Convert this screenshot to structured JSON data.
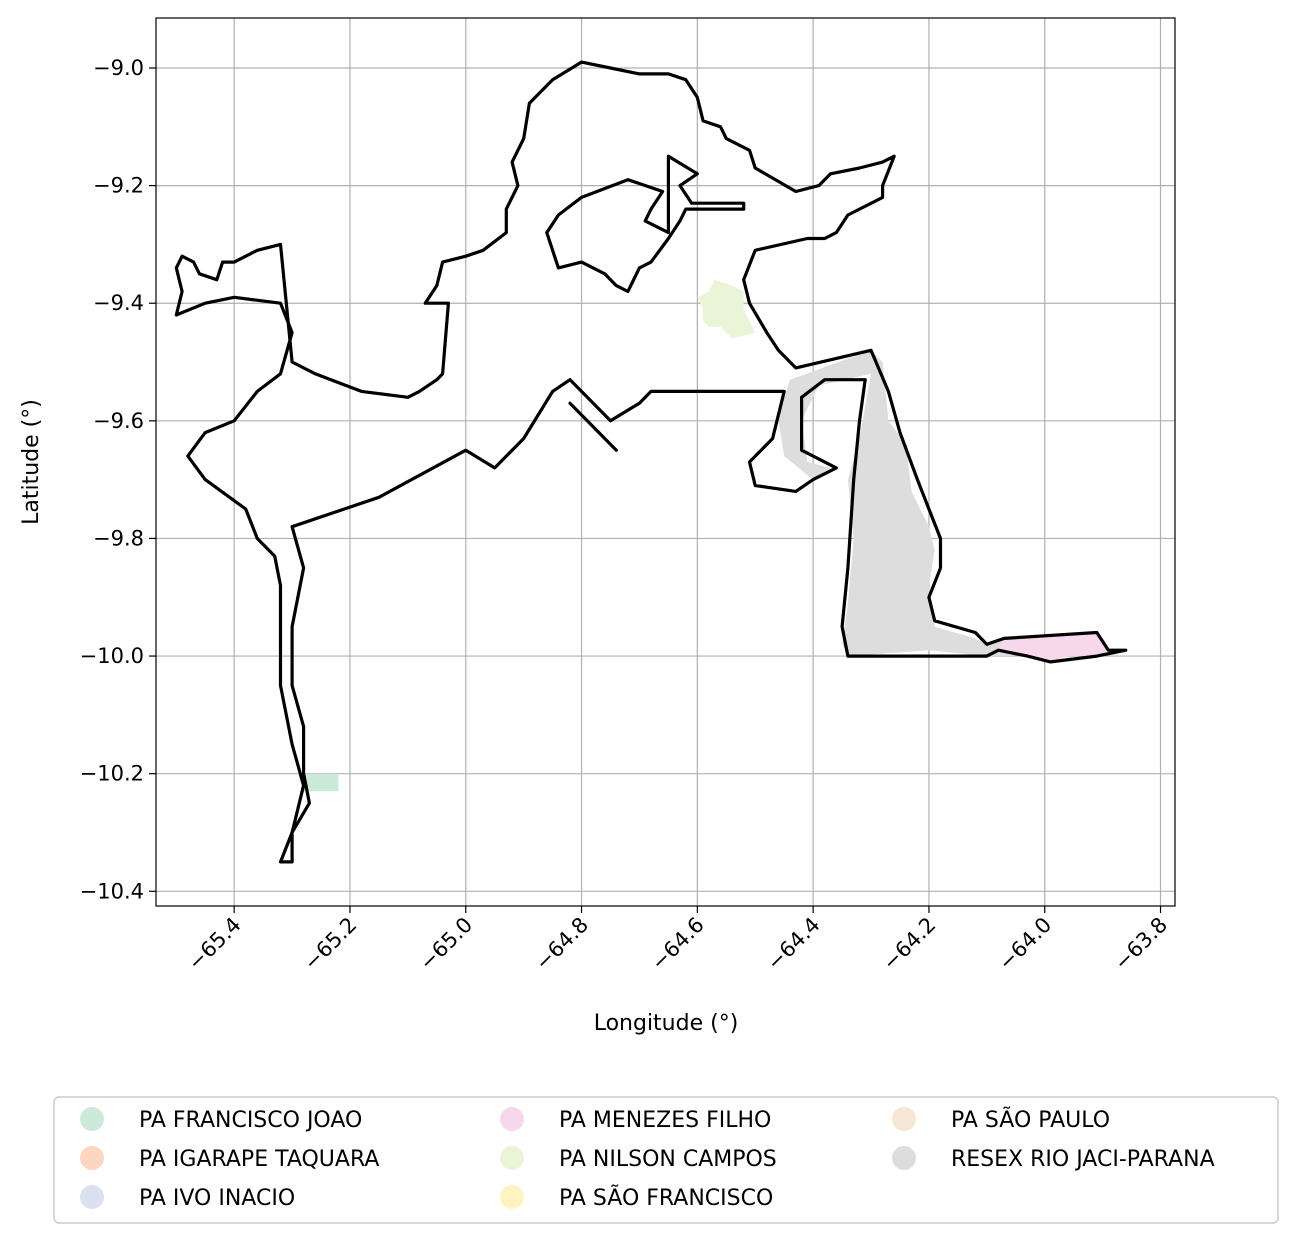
{
  "map": {
    "xlabel": "Longitude (°)",
    "ylabel": "Latitude (°)",
    "x_ticks": [
      -65.4,
      -65.2,
      -65.0,
      -64.8,
      -64.6,
      -64.4,
      -64.2,
      -64.0,
      -63.8
    ],
    "x_tick_labels": [
      "−65.4",
      "−65.2",
      "−65.0",
      "−64.8",
      "−64.6",
      "−64.4",
      "−64.2",
      "−64.0",
      "−63.8"
    ],
    "y_ticks": [
      -9.0,
      -9.2,
      -9.4,
      -9.6,
      -9.8,
      -10.0,
      -10.2,
      -10.4
    ],
    "y_tick_labels": [
      "−9.0",
      "−9.2",
      "−9.4",
      "−9.6",
      "−9.8",
      "−10.0",
      "−10.2",
      "−10.4"
    ],
    "xlim": [
      -65.535,
      -63.775
    ],
    "ylim": [
      -10.425,
      -8.915
    ],
    "grid": true,
    "boundary_color": "#000000"
  },
  "legend": {
    "placement": "below",
    "columns": 3,
    "items": [
      {
        "label": "PA FRANCISCO JOAO",
        "color": "#cbead9"
      },
      {
        "label": "PA IGARAPE TAQUARA",
        "color": "#fcd6bf"
      },
      {
        "label": "PA IVO INACIO",
        "color": "#dbe0ef"
      },
      {
        "label": "PA MENEZES FILHO",
        "color": "#f7d8ea"
      },
      {
        "label": "PA NILSON CAMPOS",
        "color": "#eaf5d8"
      },
      {
        "label": "PA SÃO FRANCISCO",
        "color": "#fff3c0"
      },
      {
        "label": "PA SÃO PAULO",
        "color": "#f5e6d6"
      },
      {
        "label": "RESEX RIO JACI-PARANA",
        "color": "#dddddd"
      }
    ]
  },
  "chart_data": {
    "type": "map",
    "xlabel": "Longitude (°)",
    "ylabel": "Latitude (°)",
    "xlim": [
      -65.535,
      -63.775
    ],
    "ylim": [
      -10.425,
      -8.915
    ],
    "grid": true,
    "legend_placement": "bottom",
    "regions": [
      {
        "name": "RESEX RIO JACI-PARANA",
        "color": "#dddddd",
        "coords": [
          [
            -64.44,
            -9.53
          ],
          [
            -64.3,
            -9.48
          ],
          [
            -64.28,
            -9.5
          ],
          [
            -64.27,
            -9.6
          ],
          [
            -64.24,
            -9.64
          ],
          [
            -64.23,
            -9.72
          ],
          [
            -64.2,
            -9.78
          ],
          [
            -64.19,
            -9.82
          ],
          [
            -64.2,
            -9.88
          ],
          [
            -64.19,
            -9.95
          ],
          [
            -64.12,
            -9.97
          ],
          [
            -64.1,
            -9.98
          ],
          [
            -64.08,
            -9.97
          ],
          [
            -64.02,
            -9.97
          ],
          [
            -63.97,
            -9.99
          ],
          [
            -64.06,
            -10.0
          ],
          [
            -64.1,
            -10.0
          ],
          [
            -64.2,
            -9.99
          ],
          [
            -64.34,
            -10.0
          ],
          [
            -64.35,
            -9.98
          ],
          [
            -64.34,
            -9.91
          ],
          [
            -64.33,
            -9.8
          ],
          [
            -64.34,
            -9.7
          ],
          [
            -64.32,
            -9.63
          ],
          [
            -64.3,
            -9.52
          ],
          [
            -64.39,
            -9.54
          ],
          [
            -64.42,
            -9.6
          ],
          [
            -64.41,
            -9.67
          ],
          [
            -64.37,
            -9.68
          ],
          [
            -64.4,
            -9.7
          ],
          [
            -64.45,
            -9.66
          ],
          [
            -64.46,
            -9.6
          ],
          [
            -64.45,
            -9.56
          ]
        ]
      },
      {
        "name": "PA MENEZES FILHO",
        "color": "#f7d8ea",
        "coords": [
          [
            -64.07,
            -9.97
          ],
          [
            -63.91,
            -9.96
          ],
          [
            -63.89,
            -9.99
          ],
          [
            -63.86,
            -9.99
          ],
          [
            -63.91,
            -10.0
          ],
          [
            -63.96,
            -10.0
          ],
          [
            -63.99,
            -10.01
          ],
          [
            -64.03,
            -10.0
          ],
          [
            -64.08,
            -9.99
          ]
        ]
      },
      {
        "name": "PA NILSON CAMPOS",
        "color": "#eaf5d8",
        "coords": [
          [
            -64.57,
            -9.36
          ],
          [
            -64.54,
            -9.37
          ],
          [
            -64.52,
            -9.38
          ],
          [
            -64.52,
            -9.41
          ],
          [
            -64.5,
            -9.45
          ],
          [
            -64.54,
            -9.46
          ],
          [
            -64.56,
            -9.44
          ],
          [
            -64.58,
            -9.44
          ],
          [
            -64.59,
            -9.43
          ],
          [
            -64.59,
            -9.41
          ],
          [
            -64.6,
            -9.39
          ],
          [
            -64.58,
            -9.38
          ]
        ]
      },
      {
        "name": "PA FRANCISCO JOAO",
        "color": "#cbead9",
        "coords": [
          [
            -65.29,
            -10.2
          ],
          [
            -65.22,
            -10.2
          ],
          [
            -65.22,
            -10.23
          ],
          [
            -65.28,
            -10.23
          ]
        ]
      }
    ],
    "boundaries": [
      {
        "name": "outer-boundary",
        "closed": true,
        "coords": [
          [
            -65.5,
            -9.34
          ],
          [
            -65.49,
            -9.32
          ],
          [
            -65.47,
            -9.33
          ],
          [
            -65.46,
            -9.35
          ],
          [
            -65.43,
            -9.36
          ],
          [
            -65.42,
            -9.33
          ],
          [
            -65.4,
            -9.33
          ],
          [
            -65.36,
            -9.31
          ],
          [
            -65.32,
            -9.3
          ],
          [
            -65.3,
            -9.5
          ],
          [
            -65.26,
            -9.52
          ],
          [
            -65.18,
            -9.55
          ],
          [
            -65.1,
            -9.56
          ],
          [
            -65.08,
            -9.55
          ],
          [
            -65.05,
            -9.53
          ],
          [
            -65.04,
            -9.52
          ],
          [
            -65.03,
            -9.4
          ],
          [
            -65.05,
            -9.4
          ],
          [
            -65.07,
            -9.4
          ],
          [
            -65.05,
            -9.37
          ],
          [
            -65.04,
            -9.33
          ],
          [
            -65.0,
            -9.32
          ],
          [
            -64.97,
            -9.31
          ],
          [
            -64.93,
            -9.28
          ],
          [
            -64.93,
            -9.24
          ],
          [
            -64.91,
            -9.2
          ],
          [
            -64.92,
            -9.16
          ],
          [
            -64.9,
            -9.12
          ],
          [
            -64.89,
            -9.06
          ],
          [
            -64.85,
            -9.02
          ],
          [
            -64.8,
            -8.99
          ],
          [
            -64.75,
            -9.0
          ],
          [
            -64.7,
            -9.01
          ],
          [
            -64.65,
            -9.01
          ],
          [
            -64.62,
            -9.02
          ],
          [
            -64.6,
            -9.05
          ],
          [
            -64.59,
            -9.09
          ],
          [
            -64.56,
            -9.1
          ],
          [
            -64.55,
            -9.12
          ],
          [
            -64.51,
            -9.14
          ],
          [
            -64.5,
            -9.17
          ],
          [
            -64.43,
            -9.21
          ],
          [
            -64.39,
            -9.2
          ],
          [
            -64.37,
            -9.18
          ],
          [
            -64.32,
            -9.17
          ],
          [
            -64.28,
            -9.16
          ],
          [
            -64.26,
            -9.15
          ],
          [
            -64.28,
            -9.2
          ],
          [
            -64.28,
            -9.22
          ],
          [
            -64.34,
            -9.25
          ],
          [
            -64.36,
            -9.28
          ],
          [
            -64.38,
            -9.29
          ],
          [
            -64.41,
            -9.29
          ],
          [
            -64.5,
            -9.31
          ],
          [
            -64.52,
            -9.36
          ],
          [
            -64.51,
            -9.4
          ],
          [
            -64.48,
            -9.45
          ],
          [
            -64.46,
            -9.48
          ],
          [
            -64.43,
            -9.51
          ],
          [
            -64.3,
            -9.48
          ],
          [
            -64.27,
            -9.55
          ],
          [
            -64.25,
            -9.62
          ],
          [
            -64.22,
            -9.7
          ],
          [
            -64.2,
            -9.75
          ],
          [
            -64.18,
            -9.8
          ],
          [
            -64.18,
            -9.85
          ],
          [
            -64.2,
            -9.9
          ],
          [
            -64.19,
            -9.94
          ],
          [
            -64.12,
            -9.96
          ],
          [
            -64.1,
            -9.98
          ],
          [
            -64.07,
            -9.97
          ],
          [
            -63.91,
            -9.96
          ],
          [
            -63.89,
            -9.99
          ],
          [
            -63.86,
            -9.99
          ],
          [
            -63.91,
            -10.0
          ],
          [
            -63.99,
            -10.01
          ],
          [
            -64.03,
            -10.0
          ],
          [
            -64.08,
            -9.99
          ],
          [
            -64.1,
            -10.0
          ],
          [
            -64.34,
            -10.0
          ],
          [
            -64.35,
            -9.95
          ],
          [
            -64.34,
            -9.85
          ],
          [
            -64.33,
            -9.7
          ],
          [
            -64.32,
            -9.6
          ],
          [
            -64.31,
            -9.53
          ],
          [
            -64.38,
            -9.53
          ],
          [
            -64.42,
            -9.56
          ],
          [
            -64.42,
            -9.65
          ],
          [
            -64.36,
            -9.68
          ],
          [
            -64.4,
            -9.7
          ],
          [
            -64.43,
            -9.72
          ],
          [
            -64.5,
            -9.71
          ],
          [
            -64.51,
            -9.67
          ],
          [
            -64.47,
            -9.63
          ],
          [
            -64.45,
            -9.55
          ],
          [
            -64.6,
            -9.55
          ],
          [
            -64.68,
            -9.55
          ],
          [
            -64.7,
            -9.57
          ],
          [
            -64.75,
            -9.6
          ],
          [
            -64.82,
            -9.53
          ],
          [
            -64.85,
            -9.55
          ],
          [
            -64.9,
            -9.63
          ],
          [
            -64.95,
            -9.68
          ],
          [
            -65.0,
            -9.65
          ],
          [
            -65.15,
            -9.73
          ],
          [
            -65.3,
            -9.78
          ],
          [
            -65.28,
            -9.85
          ],
          [
            -65.3,
            -9.95
          ],
          [
            -65.3,
            -10.05
          ],
          [
            -65.28,
            -10.12
          ],
          [
            -65.28,
            -10.2
          ],
          [
            -65.27,
            -10.25
          ],
          [
            -65.3,
            -10.3
          ],
          [
            -65.32,
            -10.35
          ],
          [
            -65.3,
            -10.35
          ],
          [
            -65.3,
            -10.3
          ],
          [
            -65.28,
            -10.22
          ],
          [
            -65.3,
            -10.15
          ],
          [
            -65.32,
            -10.05
          ],
          [
            -65.32,
            -9.95
          ],
          [
            -65.32,
            -9.88
          ],
          [
            -65.33,
            -9.83
          ],
          [
            -65.36,
            -9.8
          ],
          [
            -65.38,
            -9.75
          ],
          [
            -65.45,
            -9.7
          ],
          [
            -65.48,
            -9.66
          ],
          [
            -65.45,
            -9.62
          ],
          [
            -65.4,
            -9.6
          ],
          [
            -65.36,
            -9.55
          ],
          [
            -65.32,
            -9.52
          ],
          [
            -65.3,
            -9.45
          ],
          [
            -65.32,
            -9.4
          ],
          [
            -65.4,
            -9.39
          ],
          [
            -65.45,
            -9.4
          ],
          [
            -65.5,
            -9.42
          ],
          [
            -65.49,
            -9.38
          ]
        ]
      },
      {
        "name": "inner-boundary",
        "closed": true,
        "coords": [
          [
            -64.52,
            -9.23
          ],
          [
            -64.52,
            -9.24
          ],
          [
            -64.62,
            -9.24
          ],
          [
            -64.63,
            -9.26
          ],
          [
            -64.65,
            -9.29
          ],
          [
            -64.68,
            -9.33
          ],
          [
            -64.7,
            -9.34
          ],
          [
            -64.72,
            -9.38
          ],
          [
            -64.74,
            -9.37
          ],
          [
            -64.76,
            -9.35
          ],
          [
            -64.8,
            -9.33
          ],
          [
            -64.84,
            -9.34
          ],
          [
            -64.85,
            -9.31
          ],
          [
            -64.86,
            -9.28
          ],
          [
            -64.84,
            -9.25
          ],
          [
            -64.8,
            -9.22
          ],
          [
            -64.72,
            -9.19
          ],
          [
            -64.66,
            -9.21
          ],
          [
            -64.68,
            -9.24
          ],
          [
            -64.69,
            -9.26
          ],
          [
            -64.65,
            -9.28
          ],
          [
            -64.65,
            -9.15
          ],
          [
            -64.6,
            -9.18
          ],
          [
            -64.63,
            -9.2
          ],
          [
            -64.61,
            -9.23
          ]
        ]
      },
      {
        "name": "spur-line",
        "closed": false,
        "coords": [
          [
            -64.82,
            -9.57
          ],
          [
            -64.74,
            -9.65
          ]
        ]
      }
    ]
  }
}
